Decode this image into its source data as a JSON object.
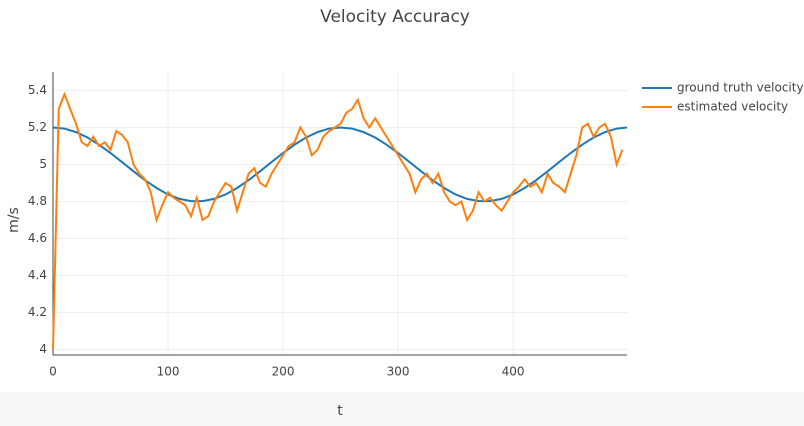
{
  "chart_data": {
    "type": "line",
    "title": "Velocity Accuracy",
    "x_label": "t",
    "y_label": "m/s",
    "xlim": [
      0,
      499
    ],
    "xticks": [
      0,
      100,
      200,
      300,
      400
    ],
    "ylim": [
      3.97,
      5.5
    ],
    "yticks": [
      4,
      4.2,
      4.4,
      4.6,
      4.8,
      5,
      5.2,
      5.4
    ],
    "grid": true,
    "legend": "right",
    "series": [
      {
        "name": "ground truth velocity",
        "color": "#1f77b4",
        "x": [
          0,
          10,
          20,
          30,
          40,
          50,
          60,
          70,
          80,
          90,
          100,
          110,
          120,
          130,
          140,
          150,
          160,
          170,
          180,
          190,
          200,
          210,
          220,
          230,
          240,
          250,
          260,
          270,
          280,
          290,
          300,
          310,
          320,
          330,
          340,
          350,
          360,
          370,
          380,
          390,
          400,
          410,
          420,
          430,
          440,
          450,
          460,
          470,
          480,
          490,
          499
        ],
        "values": [
          5.2,
          5.194,
          5.175,
          5.146,
          5.107,
          5.062,
          5.013,
          4.963,
          4.915,
          4.873,
          4.838,
          4.814,
          4.802,
          4.802,
          4.814,
          4.838,
          4.873,
          4.915,
          4.963,
          5.013,
          5.062,
          5.107,
          5.146,
          5.175,
          5.194,
          5.2,
          5.194,
          5.175,
          5.146,
          5.107,
          5.062,
          5.013,
          4.963,
          4.915,
          4.873,
          4.838,
          4.814,
          4.802,
          4.802,
          4.814,
          4.838,
          4.873,
          4.915,
          4.963,
          5.013,
          5.062,
          5.107,
          5.146,
          5.175,
          5.194,
          5.2
        ]
      },
      {
        "name": "estimated velocity",
        "color": "#ff7f0e",
        "x": [
          0,
          5,
          10,
          15,
          20,
          25,
          30,
          35,
          40,
          45,
          50,
          55,
          60,
          65,
          70,
          75,
          80,
          85,
          90,
          95,
          100,
          105,
          110,
          115,
          120,
          125,
          130,
          135,
          140,
          145,
          150,
          155,
          160,
          165,
          170,
          175,
          180,
          185,
          190,
          195,
          200,
          205,
          210,
          215,
          220,
          225,
          230,
          235,
          240,
          245,
          250,
          255,
          260,
          265,
          270,
          275,
          280,
          285,
          290,
          295,
          300,
          305,
          310,
          315,
          320,
          325,
          330,
          335,
          340,
          345,
          350,
          355,
          360,
          365,
          370,
          375,
          380,
          385,
          390,
          395,
          400,
          405,
          410,
          415,
          420,
          425,
          430,
          435,
          440,
          445,
          450,
          455,
          460,
          465,
          470,
          475,
          480,
          485,
          490,
          495
        ],
        "values": [
          4.0,
          5.3,
          5.38,
          5.3,
          5.22,
          5.12,
          5.1,
          5.15,
          5.1,
          5.12,
          5.08,
          5.18,
          5.16,
          5.12,
          5.0,
          4.95,
          4.92,
          4.85,
          4.7,
          4.78,
          4.85,
          4.82,
          4.8,
          4.78,
          4.72,
          4.82,
          4.7,
          4.72,
          4.8,
          4.85,
          4.9,
          4.88,
          4.75,
          4.85,
          4.95,
          4.98,
          4.9,
          4.88,
          4.95,
          5.0,
          5.05,
          5.1,
          5.12,
          5.2,
          5.15,
          5.05,
          5.08,
          5.15,
          5.18,
          5.2,
          5.22,
          5.28,
          5.3,
          5.35,
          5.25,
          5.2,
          5.25,
          5.2,
          5.15,
          5.1,
          5.05,
          5.0,
          4.95,
          4.85,
          4.92,
          4.95,
          4.9,
          4.95,
          4.85,
          4.8,
          4.78,
          4.8,
          4.7,
          4.75,
          4.85,
          4.8,
          4.82,
          4.78,
          4.75,
          4.8,
          4.85,
          4.88,
          4.92,
          4.88,
          4.9,
          4.85,
          4.95,
          4.9,
          4.88,
          4.85,
          4.95,
          5.05,
          5.2,
          5.22,
          5.15,
          5.2,
          5.22,
          5.15,
          5.0,
          5.08
        ]
      }
    ]
  }
}
